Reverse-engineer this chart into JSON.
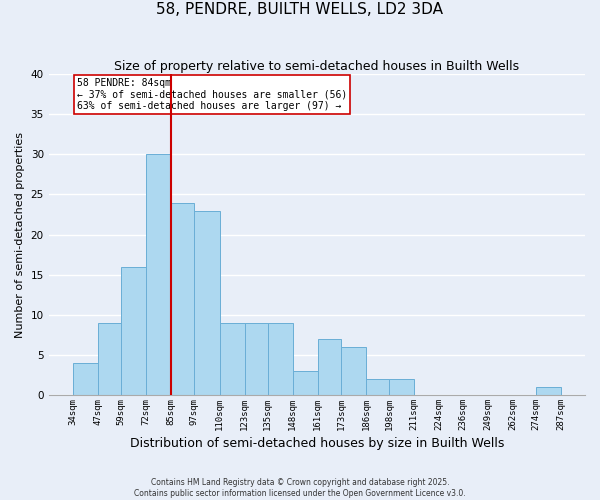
{
  "title": "58, PENDRE, BUILTH WELLS, LD2 3DA",
  "subtitle": "Size of property relative to semi-detached houses in Builth Wells",
  "xlabel": "Distribution of semi-detached houses by size in Builth Wells",
  "ylabel": "Number of semi-detached properties",
  "bin_edges": [
    34,
    47,
    59,
    72,
    85,
    97,
    110,
    123,
    135,
    148,
    161,
    173,
    186,
    198,
    211,
    224,
    236,
    249,
    262,
    274,
    287
  ],
  "counts": [
    4,
    9,
    16,
    30,
    24,
    23,
    9,
    9,
    9,
    3,
    7,
    6,
    2,
    2,
    0,
    0,
    0,
    0,
    0,
    1
  ],
  "bar_color": "#add8f0",
  "bar_edge_color": "#6aaed6",
  "vline_x": 85,
  "vline_color": "#cc0000",
  "ylim": [
    0,
    40
  ],
  "annotation_text": "58 PENDRE: 84sqm\n← 37% of semi-detached houses are smaller (56)\n63% of semi-detached houses are larger (97) →",
  "annotation_box_color": "#ffffff",
  "annotation_box_edge": "#cc0000",
  "footnote1": "Contains HM Land Registry data © Crown copyright and database right 2025.",
  "footnote2": "Contains public sector information licensed under the Open Government Licence v3.0.",
  "background_color": "#e8eef8",
  "grid_color": "#ffffff",
  "title_fontsize": 11,
  "subtitle_fontsize": 9,
  "xlabel_fontsize": 9,
  "ylabel_fontsize": 8,
  "tick_labels": [
    "34sqm",
    "47sqm",
    "59sqm",
    "72sqm",
    "85sqm",
    "97sqm",
    "110sqm",
    "123sqm",
    "135sqm",
    "148sqm",
    "161sqm",
    "173sqm",
    "186sqm",
    "198sqm",
    "211sqm",
    "224sqm",
    "236sqm",
    "249sqm",
    "262sqm",
    "274sqm",
    "287sqm"
  ],
  "yticks": [
    0,
    5,
    10,
    15,
    20,
    25,
    30,
    35,
    40
  ]
}
